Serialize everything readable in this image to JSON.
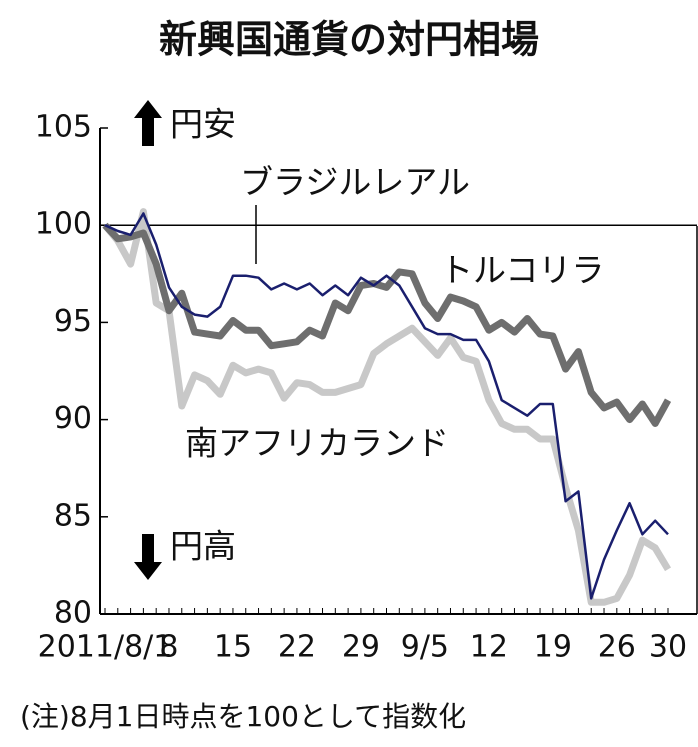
{
  "chart_data": {
    "type": "line",
    "title": "新興国通貨の対円相場",
    "categories": [
      "2011/8/1",
      null,
      null,
      null,
      null,
      "8",
      null,
      null,
      null,
      null,
      "15",
      null,
      null,
      null,
      null,
      "22",
      null,
      null,
      null,
      null,
      "29",
      null,
      null,
      null,
      null,
      "9/5",
      null,
      null,
      null,
      null,
      "12",
      null,
      null,
      null,
      null,
      "19",
      null,
      null,
      null,
      null,
      "26",
      null,
      null,
      null,
      "30"
    ],
    "series": [
      {
        "name": "南アフリカランド",
        "color": "#c8c8c8",
        "values": [
          100,
          99.2,
          98.0,
          100.7,
          96.0,
          95.6,
          90.7,
          92.3,
          92.0,
          91.3,
          92.8,
          92.4,
          92.6,
          92.4,
          91.1,
          91.9,
          91.8,
          91.4,
          91.4,
          91.6,
          91.8,
          93.4,
          93.9,
          94.3,
          94.7,
          94.0,
          93.3,
          94.2,
          93.2,
          93.0,
          91.0,
          89.8,
          89.5,
          89.5,
          89.0,
          89.0,
          86.5,
          84.3,
          80.6,
          80.6,
          80.8,
          82.0,
          83.8,
          83.4,
          82.3
        ]
      },
      {
        "name": "トルコリラ",
        "color": "#6e6e6e",
        "values": [
          100,
          99.3,
          99.4,
          99.6,
          98.0,
          95.6,
          96.5,
          94.5,
          94.4,
          94.3,
          95.1,
          94.6,
          94.6,
          93.8,
          93.9,
          94.0,
          94.6,
          94.3,
          96.0,
          95.6,
          96.9,
          97.0,
          96.8,
          97.6,
          97.5,
          96.0,
          95.2,
          96.3,
          96.1,
          95.8,
          94.6,
          95.0,
          94.5,
          95.2,
          94.4,
          94.3,
          92.6,
          93.5,
          91.4,
          90.6,
          90.9,
          90.0,
          90.8,
          89.8,
          91.0
        ]
      },
      {
        "name": "ブラジルレアル",
        "color": "#1a1f6e",
        "values": [
          100,
          99.7,
          99.5,
          100.6,
          99.0,
          96.8,
          95.8,
          95.4,
          95.3,
          95.8,
          97.4,
          97.4,
          97.3,
          96.7,
          97.0,
          96.7,
          97.0,
          96.4,
          96.9,
          96.4,
          97.3,
          96.9,
          97.4,
          96.9,
          95.8,
          94.7,
          94.4,
          94.4,
          94.1,
          94.1,
          93.0,
          91.0,
          90.6,
          90.2,
          90.8,
          90.8,
          85.8,
          86.3,
          80.8,
          82.8,
          84.3,
          85.7,
          84.1,
          84.8,
          84.1
        ]
      }
    ],
    "ylim": [
      80,
      105
    ],
    "yticks": [
      80,
      85,
      90,
      95,
      100,
      105
    ],
    "reference_line": 100,
    "annotations": {
      "yen_weak": "円安",
      "yen_strong": "円高",
      "note": "(注)8月1日時点を100として指数化"
    }
  }
}
